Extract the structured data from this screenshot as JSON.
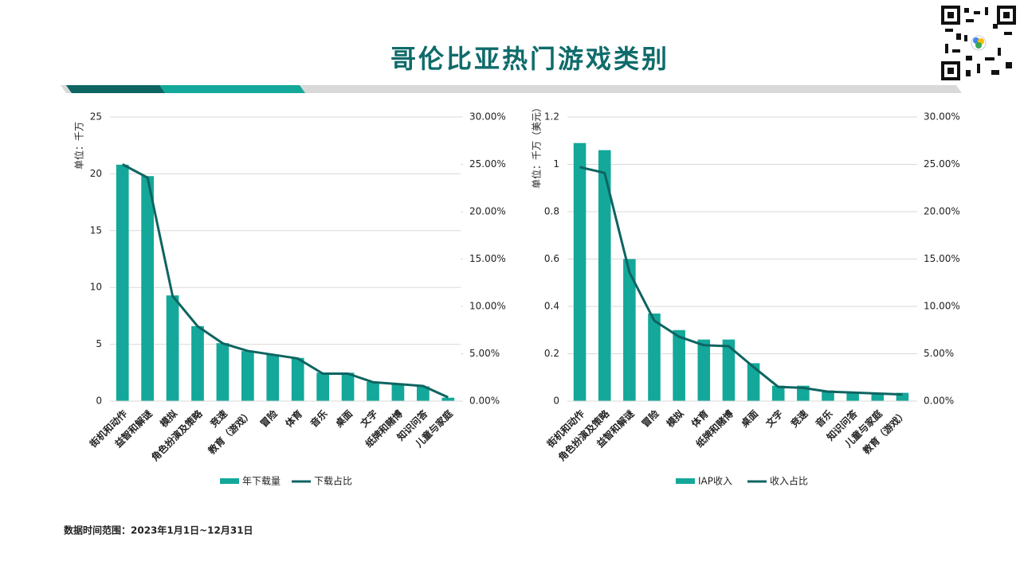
{
  "title": "哥伦比亚热门游戏类别",
  "footnote": "数据时间范围：2023年1月1日~12月31日",
  "chart_data": [
    {
      "type": "bar-line",
      "ylabel": "单位：千万",
      "categories": [
        "街机和动作",
        "益智和解谜",
        "模拟",
        "角色扮演及策略",
        "竞速",
        "教育（游戏）",
        "冒险",
        "体育",
        "音乐",
        "桌面",
        "文字",
        "纸牌和赌博",
        "知识问答",
        "儿童与家庭"
      ],
      "series": [
        {
          "name": "年下载量",
          "color": "#13a89a",
          "type": "bar",
          "values": [
            20.8,
            19.8,
            9.3,
            6.6,
            5.1,
            4.4,
            4.1,
            3.8,
            2.5,
            2.5,
            1.7,
            1.5,
            1.3,
            0.3
          ]
        },
        {
          "name": "下载占比",
          "color": "#0e6461",
          "type": "line",
          "axis": "y2",
          "values": [
            25.0,
            23.6,
            11.1,
            7.9,
            6.1,
            5.3,
            4.9,
            4.5,
            2.9,
            2.9,
            2.0,
            1.8,
            1.6,
            0.4
          ]
        }
      ],
      "ylim": [
        0,
        25
      ],
      "yticks": [
        0,
        5,
        10,
        15,
        20,
        25
      ],
      "y2lim": [
        0,
        30
      ],
      "y2ticks": [
        {
          "value": 0,
          "label": "0.00%"
        },
        {
          "value": 5,
          "label": "5.00%"
        },
        {
          "value": 10,
          "label": "10.00%"
        },
        {
          "value": 15,
          "label": "15.00%"
        },
        {
          "value": 20,
          "label": "20.00%"
        },
        {
          "value": 25,
          "label": "25.00%"
        },
        {
          "value": 30,
          "label": "30.00%"
        }
      ],
      "grid": true,
      "legend": "bottom"
    },
    {
      "type": "bar-line",
      "ylabel": "单位：千万（美元）",
      "categories": [
        "街机和动作",
        "角色扮演及策略",
        "益智和解谜",
        "冒险",
        "模拟",
        "体育",
        "纸牌和赌博",
        "桌面",
        "文字",
        "竞速",
        "音乐",
        "知识问答",
        "儿童与家庭",
        "教育（游戏）"
      ],
      "series": [
        {
          "name": "IAP收入",
          "color": "#13a89a",
          "type": "bar",
          "values": [
            1.09,
            1.06,
            0.6,
            0.37,
            0.3,
            0.26,
            0.26,
            0.16,
            0.065,
            0.065,
            0.045,
            0.04,
            0.035,
            0.035
          ]
        },
        {
          "name": "收入占比",
          "color": "#0e6461",
          "type": "line",
          "axis": "y2",
          "values": [
            24.7,
            24.1,
            13.6,
            8.5,
            6.8,
            5.9,
            5.8,
            3.6,
            1.5,
            1.4,
            1.0,
            0.9,
            0.8,
            0.7
          ]
        }
      ],
      "ylim": [
        0,
        1.2
      ],
      "yticks": [
        0,
        0.2,
        0.4,
        0.6,
        0.8,
        1,
        1.2
      ],
      "y2lim": [
        0,
        30
      ],
      "y2ticks": [
        {
          "value": 0,
          "label": "0.00%"
        },
        {
          "value": 5,
          "label": "5.00%"
        },
        {
          "value": 10,
          "label": "10.00%"
        },
        {
          "value": 15,
          "label": "15.00%"
        },
        {
          "value": 20,
          "label": "20.00%"
        },
        {
          "value": 25,
          "label": "25.00%"
        },
        {
          "value": 30,
          "label": "30.00%"
        }
      ],
      "grid": true,
      "legend": "bottom"
    }
  ]
}
